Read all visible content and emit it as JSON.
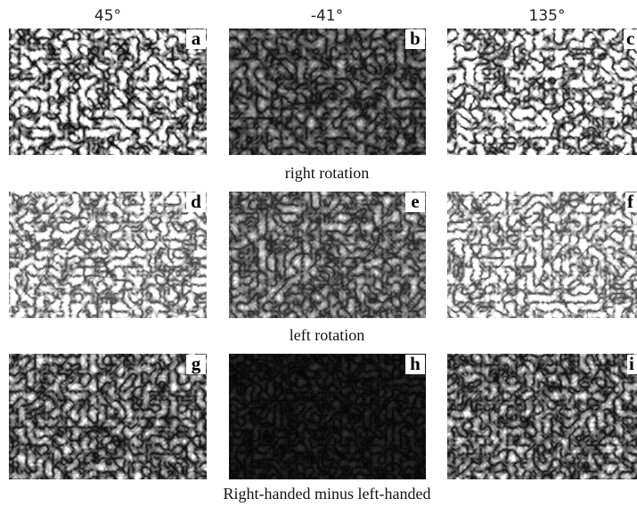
{
  "columns": [
    "45°",
    "-41°",
    "135°"
  ],
  "rows": [
    {
      "panels": [
        "a",
        "b",
        "c"
      ],
      "caption": "right rotation"
    },
    {
      "panels": [
        "d",
        "e",
        "f"
      ],
      "caption": "left rotation"
    },
    {
      "panels": [
        "g",
        "h",
        "i"
      ],
      "caption": "Right-handed minus left-handed"
    }
  ]
}
